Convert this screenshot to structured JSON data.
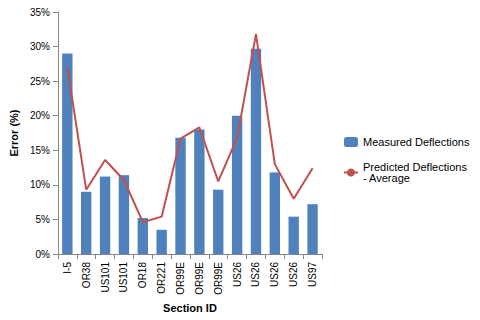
{
  "chart_data": {
    "type": "bar",
    "categories": [
      "I-5",
      "OR38",
      "US101",
      "US101",
      "OR18",
      "OR221",
      "OR99E",
      "OR99E",
      "OR99E",
      "US26",
      "US26",
      "US26",
      "US26",
      "US97"
    ],
    "series": [
      {
        "name": "Measured Deflections",
        "type": "bar",
        "color": "#4F81BD",
        "values": [
          29,
          9,
          11.2,
          11.4,
          5.2,
          3.5,
          16.8,
          18,
          9.3,
          20,
          29.7,
          11.8,
          5.4,
          7.2
        ]
      },
      {
        "name": "Predicted Deflections - Average",
        "type": "line",
        "color": "#C0504D",
        "marker": "none",
        "values": [
          27,
          9.3,
          13.6,
          10.7,
          4.6,
          5.4,
          16.7,
          18.3,
          10.5,
          16.8,
          31.8,
          13,
          8,
          12.4
        ]
      }
    ],
    "xlabel": "Section ID",
    "ylabel": "Error (%)",
    "ylim": [
      0,
      35
    ],
    "yticks": [
      {
        "value": 0,
        "label": "0%"
      },
      {
        "value": 5,
        "label": "5%"
      },
      {
        "value": 10,
        "label": "10%"
      },
      {
        "value": 15,
        "label": "15%"
      },
      {
        "value": 20,
        "label": "20%"
      },
      {
        "value": 25,
        "label": "25%"
      },
      {
        "value": 30,
        "label": "30%"
      },
      {
        "value": 35,
        "label": "35%"
      }
    ],
    "grid": false,
    "legend": "right"
  }
}
